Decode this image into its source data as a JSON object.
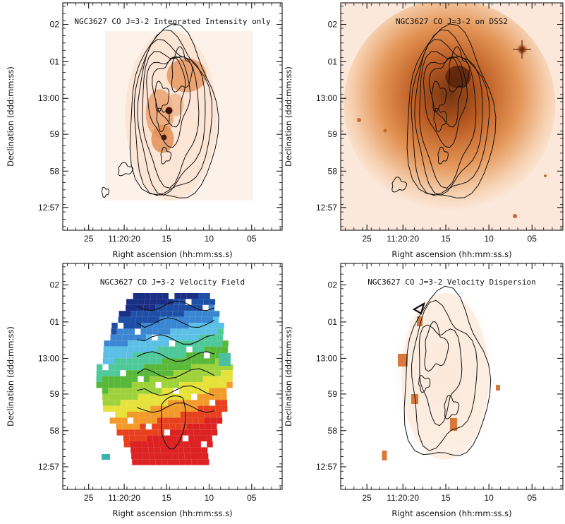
{
  "figure": {
    "panels": [
      {
        "title": "NGC3627 CO J=3-2 Integrated Intensity only",
        "xlabel": "Right ascension (hh:mm:ss.s)",
        "ylabel": "Declination (ddd:mm:ss)",
        "xticks": [
          "25",
          "11:20:20",
          "15",
          "10",
          "05"
        ],
        "yticks": [
          "02",
          "01",
          "13:00",
          "59",
          "58",
          "12:57"
        ],
        "map": "intensity"
      },
      {
        "title": "NGC3627 CO J=3-2 on DSS2",
        "xlabel": "Right ascension (hh:mm:ss.s)",
        "ylabel": "Declination (ddd:mm:ss)",
        "xticks": [
          "25",
          "11:20:20",
          "15",
          "10",
          "05"
        ],
        "yticks": [
          "02",
          "01",
          "13:00",
          "59",
          "58",
          "12:57"
        ],
        "map": "dss"
      },
      {
        "title": "NGC3627 CO J=3-2 Velocity Field",
        "xlabel": "Right ascension (hh:mm:ss.s)",
        "ylabel": "Declination (ddd:mm:ss)",
        "xticks": [
          "25",
          "11:20:20",
          "15",
          "10",
          "05"
        ],
        "yticks": [
          "02",
          "01",
          "13:00",
          "59",
          "58",
          "12:57"
        ],
        "map": "velocity"
      },
      {
        "title": "NGC3627 CO J=3-2 Velocity Dispersion",
        "xlabel": "Right ascension (hh:mm:ss.s)",
        "ylabel": "Declination (ddd:mm:ss)",
        "xticks": [
          "25",
          "11:20:20",
          "15",
          "10",
          "05"
        ],
        "yticks": [
          "02",
          "01",
          "13:00",
          "59",
          "58",
          "12:57"
        ],
        "map": "dispersion"
      }
    ]
  }
}
